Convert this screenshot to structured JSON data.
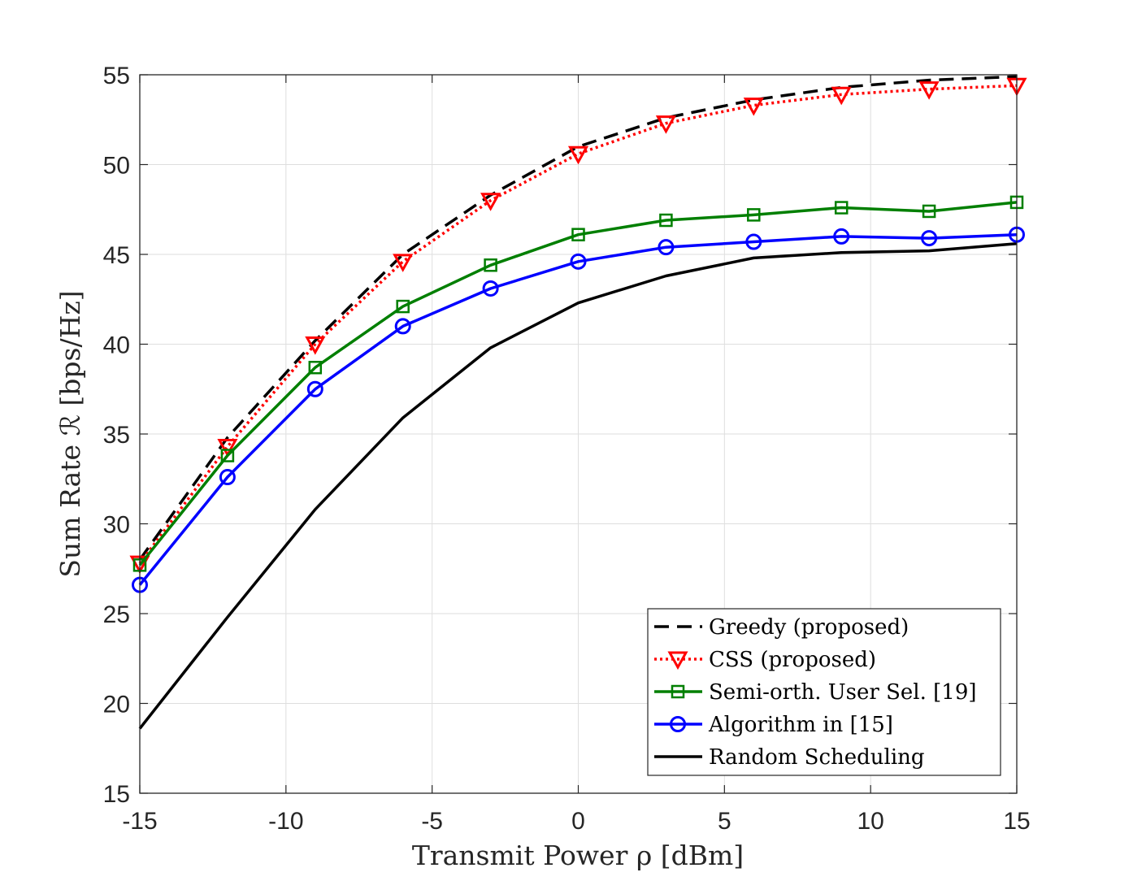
{
  "chart_data": {
    "type": "line",
    "title": "",
    "xlabel": "Transmit Power ρ [dBm]",
    "ylabel": "Sum Rate ℛ [bps/Hz]",
    "xlim": [
      -15,
      15
    ],
    "ylim": [
      15,
      55
    ],
    "xticks": [
      -15,
      -10,
      -5,
      0,
      5,
      10,
      15
    ],
    "yticks": [
      15,
      20,
      25,
      30,
      35,
      40,
      45,
      50,
      55
    ],
    "xtick_labels": [
      "-15",
      "-10",
      "-5",
      "0",
      "5",
      "10",
      "15"
    ],
    "ytick_labels": [
      "15",
      "20",
      "25",
      "30",
      "35",
      "40",
      "45",
      "50",
      "55"
    ],
    "grid": true,
    "legend_position": "bottom-right",
    "x": [
      -15,
      -12,
      -9,
      -6,
      -3,
      0,
      3,
      6,
      9,
      12,
      15
    ],
    "series": [
      {
        "name": "Greedy (proposed)",
        "color": "#000000",
        "style": "dashed",
        "marker": "none",
        "values": [
          28.0,
          34.8,
          40.2,
          45.0,
          48.3,
          51.0,
          52.6,
          53.6,
          54.3,
          54.7,
          54.9
        ]
      },
      {
        "name": "CSS (proposed)",
        "color": "#ff0000",
        "style": "dotted",
        "marker": "triangle-down",
        "values": [
          27.8,
          34.3,
          40.0,
          44.6,
          48.0,
          50.6,
          52.3,
          53.3,
          53.9,
          54.2,
          54.4
        ]
      },
      {
        "name": "Semi-orth. User Sel. [19]",
        "color": "#007f00",
        "style": "solid",
        "marker": "square",
        "values": [
          27.7,
          33.8,
          38.7,
          42.1,
          44.4,
          46.1,
          46.9,
          47.2,
          47.6,
          47.4,
          47.9
        ]
      },
      {
        "name": "Algorithm in [15]",
        "color": "#0000ff",
        "style": "solid",
        "marker": "circle",
        "values": [
          26.6,
          32.6,
          37.5,
          41.0,
          43.1,
          44.6,
          45.4,
          45.7,
          46.0,
          45.9,
          46.1
        ]
      },
      {
        "name": "Random Scheduling",
        "color": "#000000",
        "style": "solid",
        "marker": "none",
        "values": [
          18.6,
          24.8,
          30.8,
          35.9,
          39.8,
          42.3,
          43.8,
          44.8,
          45.1,
          45.2,
          45.6
        ]
      }
    ]
  }
}
